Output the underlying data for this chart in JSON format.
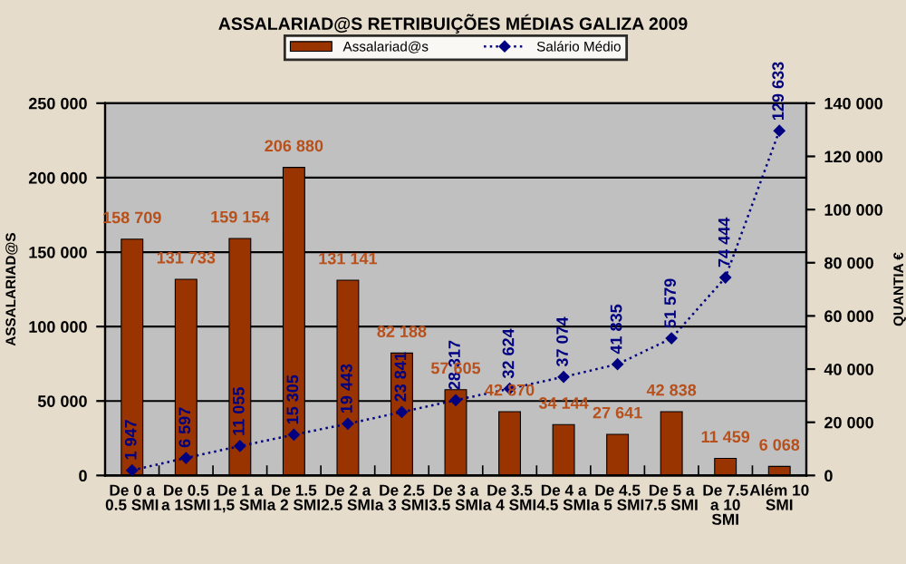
{
  "chart_data": {
    "type": "bar",
    "title": "ASSALARIAD@S RETRIBUIÇÕES MÉDIAS GALIZA 2009",
    "ylabel": "ASSALARIAD@S",
    "y2label": "QUANTIA €",
    "categories": [
      "De 0 a 0.5 SMI",
      "De 0.5 a 1SMI",
      "De 1 a 1,5 SMI",
      "De 1.5 a 2 SMI",
      "De 2 a 2.5 SMI",
      "De 2.5 a 3 SMI",
      "De 3 a 3.5 SMI",
      "De 3.5 a 4 SMI",
      "De 4 a 4.5 SMI",
      "De 4.5 a 5 SMI",
      "De 5 a 7.5 SMI",
      "De 7.5 a 10 SMI",
      "Além 10 SMI"
    ],
    "series": [
      {
        "name": "Assalariad@s",
        "color": "#993300",
        "values": [
          158709,
          131733,
          159154,
          206880,
          131141,
          82188,
          57605,
          42870,
          34144,
          27641,
          42838,
          11459,
          6068
        ],
        "value_labels": [
          "158 709",
          "131 733",
          "159 154",
          "206 880",
          "131 141",
          "82 188",
          "57 605",
          "42 870",
          "34 144",
          "27 641",
          "42 838",
          "11 459",
          "6 068"
        ]
      },
      {
        "name": "Salário Médio",
        "type": "line",
        "axis": "y2",
        "color": "#000080",
        "marker": "diamond",
        "line_style": "dotted",
        "values": [
          1947,
          6597,
          11055,
          15305,
          19443,
          23841,
          28317,
          32624,
          37074,
          41835,
          51579,
          74444,
          129633
        ],
        "value_labels": [
          "1 947",
          "6 597",
          "11 055",
          "15 305",
          "19 443",
          "23 841",
          "28 317",
          "32 624",
          "37 074",
          "41 835",
          "51 579",
          "74 444",
          "129 633"
        ]
      }
    ],
    "ylim": [
      0,
      250000
    ],
    "yticks": [
      {
        "value": 0,
        "label": "0"
      },
      {
        "value": 50000,
        "label": "50 000"
      },
      {
        "value": 100000,
        "label": "100 000"
      },
      {
        "value": 150000,
        "label": "150 000"
      },
      {
        "value": 200000,
        "label": "200 000"
      },
      {
        "value": 250000,
        "label": "250 000"
      }
    ],
    "y2lim": [
      0,
      140000
    ],
    "y2ticks": [
      {
        "value": 0,
        "label": "0"
      },
      {
        "value": 20000,
        "label": "20 000"
      },
      {
        "value": 40000,
        "label": "40 000"
      },
      {
        "value": 60000,
        "label": "60 000"
      },
      {
        "value": 80000,
        "label": "80 000"
      },
      {
        "value": 100000,
        "label": "100 000"
      },
      {
        "value": 120000,
        "label": "120 000"
      },
      {
        "value": 140000,
        "label": "140 000"
      }
    ],
    "grid": "y",
    "legend": "top"
  }
}
